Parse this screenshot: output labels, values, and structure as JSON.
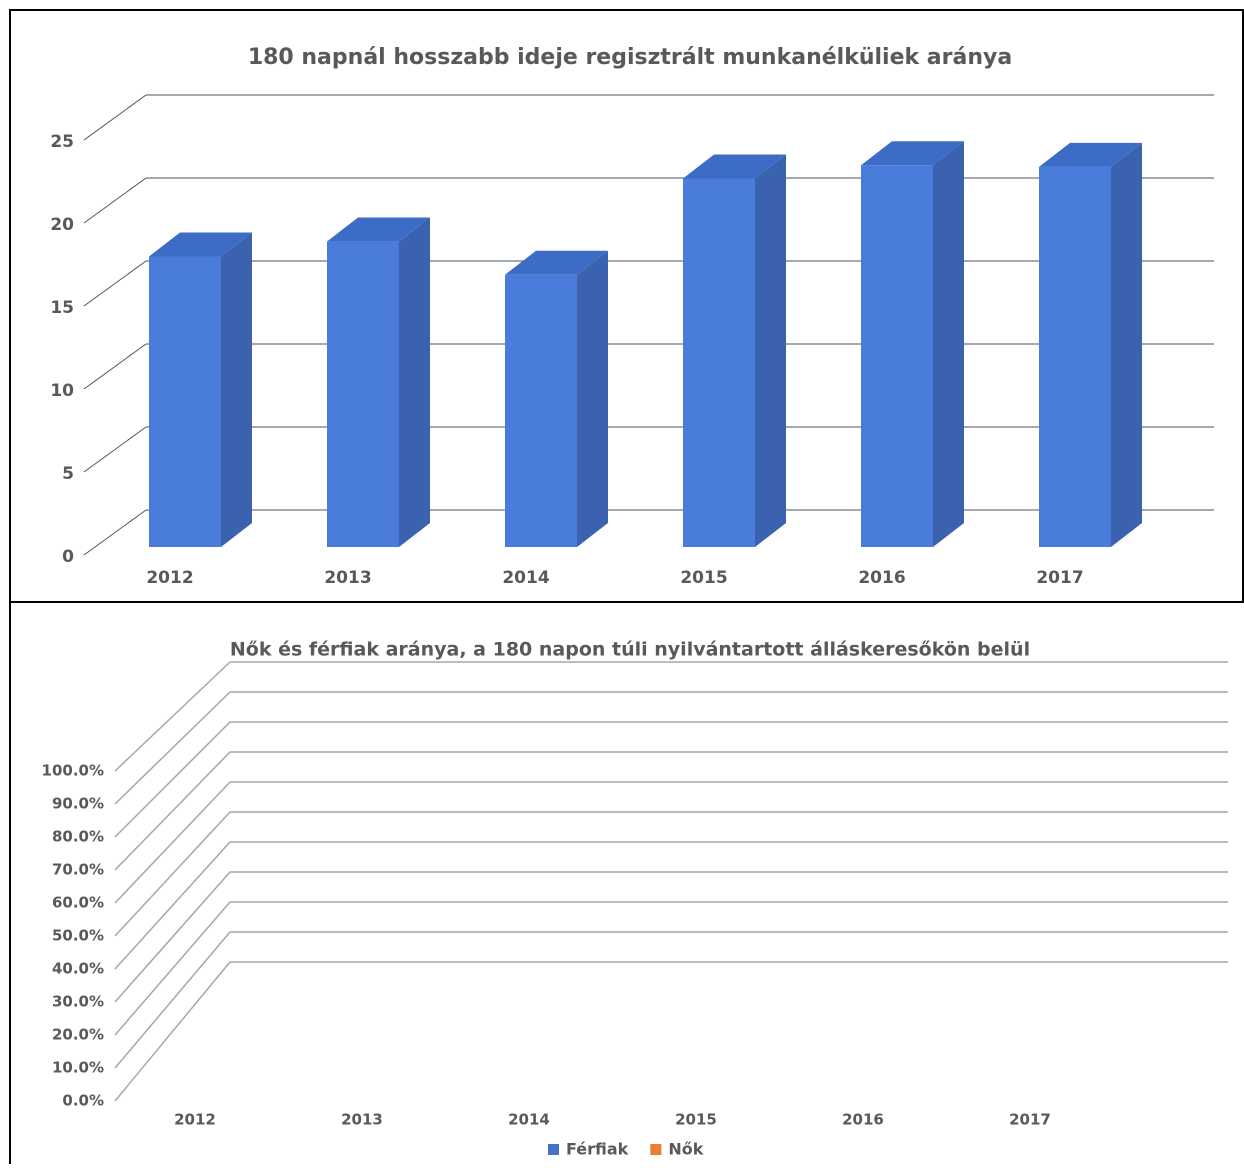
{
  "charts": [
    {
      "type": "bar3d",
      "title": "180 napnál hosszabb ideje regisztrált munkanélküliek aránya",
      "categories": [
        "2012",
        "2013",
        "2014",
        "2015",
        "2016",
        "2017"
      ],
      "values": [
        17.5,
        18.4,
        16.4,
        22.2,
        23.0,
        22.9
      ],
      "color": "#4a7ddb",
      "ylim": [
        0,
        25
      ],
      "yticks": [
        0,
        5,
        10,
        15,
        20,
        25
      ],
      "grid": true
    },
    {
      "type": "bar3d",
      "title": "Nők és férfiak aránya, a 180 napon túli nyilvántartott álláskeresőkön belül",
      "categories": [
        "2012",
        "2013",
        "2014",
        "2015",
        "2016",
        "2017"
      ],
      "series": [
        {
          "name": "Férfiak",
          "color": "#4472c4",
          "values": [
            null,
            null,
            null,
            null,
            null,
            null
          ]
        },
        {
          "name": "Nők",
          "color": "#ed7d31",
          "values": [
            null,
            null,
            null,
            null,
            null,
            null
          ]
        }
      ],
      "ylim": [
        0,
        1
      ],
      "yticks": [
        {
          "value": 0,
          "label": "0.0%"
        },
        {
          "value": 0.1,
          "label": "10.0%"
        },
        {
          "value": 0.2,
          "label": "20.0%"
        },
        {
          "value": 0.3,
          "label": "30.0%"
        },
        {
          "value": 0.4,
          "label": "40.0%"
        },
        {
          "value": 0.5,
          "label": "50.0%"
        },
        {
          "value": 0.6,
          "label": "60.0%"
        },
        {
          "value": 0.7,
          "label": "70.0%"
        },
        {
          "value": 0.8,
          "label": "80.0%"
        },
        {
          "value": 0.9,
          "label": "90.0%"
        },
        {
          "value": 1,
          "label": "100.0%"
        }
      ],
      "grid": true,
      "legend": "bottom"
    }
  ]
}
